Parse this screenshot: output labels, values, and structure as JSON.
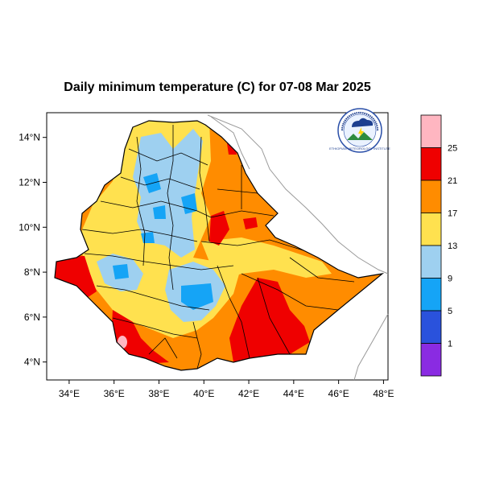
{
  "map": {
    "title": "Daily minimum temperature (C) for 07-08 Mar 2025",
    "lon_ticks": [
      "34°E",
      "36°E",
      "38°E",
      "40°E",
      "42°E",
      "44°E",
      "46°E",
      "48°E"
    ],
    "lat_ticks": [
      "14°N",
      "12°N",
      "10°N",
      "8°N",
      "6°N",
      "4°N"
    ],
    "lon_range": [
      33,
      48.2
    ],
    "lat_range": [
      3.2,
      15.1
    ],
    "logo": {
      "name": "ethiopian-meteorology-institute-logo",
      "ring_text": "ETHIOPIAN METEOROLOGY INSTITUTE"
    }
  },
  "colorbar": {
    "labels": [
      "25",
      "21",
      "17",
      "13",
      "9",
      "5",
      "1"
    ],
    "bins": [
      {
        "color": "#ffb6c1",
        "range": "> 25"
      },
      {
        "color": "#ef0000",
        "range": "21-25"
      },
      {
        "color": "#ff8c00",
        "range": "17-21"
      },
      {
        "color": "#ffe14f",
        "range": "13-17"
      },
      {
        "color": "#9ed0f0",
        "range": "9-13"
      },
      {
        "color": "#15a4f6",
        "range": "5-9"
      },
      {
        "color": "#2a52dc",
        "range": "1-5"
      },
      {
        "color": "#8a2be2",
        "range": "< 1"
      }
    ]
  }
}
